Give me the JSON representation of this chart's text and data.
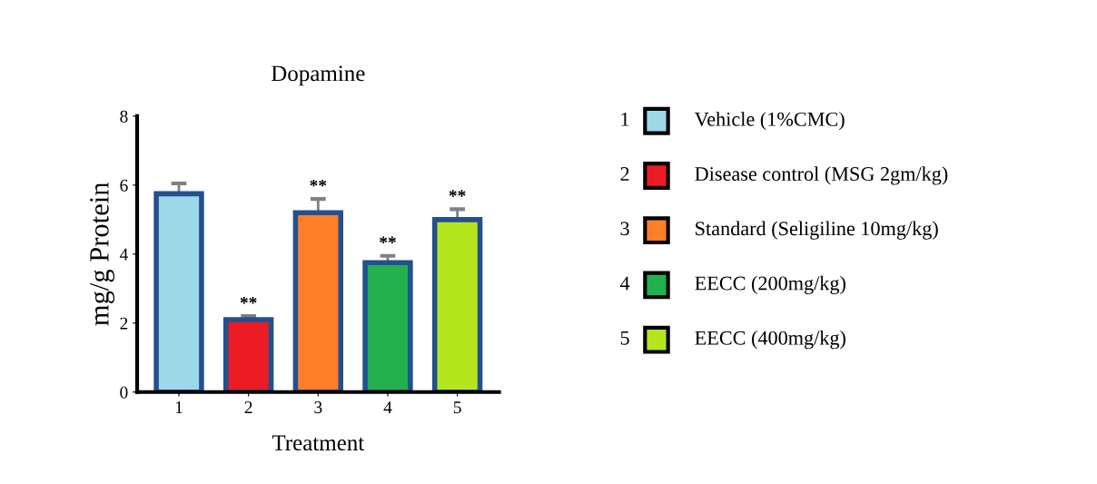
{
  "chart_data": {
    "type": "bar",
    "title": "Dopamine",
    "xlabel": "Treatment",
    "ylabel": "mg/g Protein",
    "categories": [
      "1",
      "2",
      "3",
      "4",
      "5"
    ],
    "series": [
      {
        "name": "Vehicle (1%CMC)",
        "color": "#9dd8e8",
        "values": [
          5.75,
          null,
          null,
          null,
          null
        ],
        "errors": [
          0.3,
          null,
          null,
          null,
          null
        ]
      },
      {
        "name": "Disease control (MSG 2gm/kg)",
        "color": "#ec1c24",
        "values": [
          null,
          2.1,
          null,
          null,
          null
        ],
        "errors": [
          null,
          0.1,
          null,
          null,
          null
        ]
      },
      {
        "name": "Standard (Seligiline 10mg/kg)",
        "color": "#fe7f27",
        "values": [
          null,
          null,
          5.2,
          null,
          null
        ],
        "errors": [
          null,
          null,
          0.4,
          null,
          null
        ]
      },
      {
        "name": "EECC (200mg/kg)",
        "color": "#22b14c",
        "values": [
          null,
          null,
          null,
          3.75,
          null
        ],
        "errors": [
          null,
          null,
          null,
          0.2,
          null
        ]
      },
      {
        "name": "EECC (400mg/kg)",
        "color": "#b5e61d",
        "values": [
          null,
          null,
          null,
          null,
          5.0
        ],
        "errors": [
          null,
          null,
          null,
          null,
          0.3
        ]
      }
    ],
    "ylim": [
      0,
      8
    ],
    "yticks": [
      0,
      2,
      4,
      6,
      8
    ],
    "grid": false,
    "legend": "right",
    "annotations": [
      {
        "text": "**",
        "x": "2",
        "y": 2.2
      },
      {
        "text": "**",
        "x": "3",
        "y": 5.6
      },
      {
        "text": "**",
        "x": "4",
        "y": 3.95
      },
      {
        "text": "**",
        "x": "5",
        "y": 5.3
      }
    ]
  }
}
